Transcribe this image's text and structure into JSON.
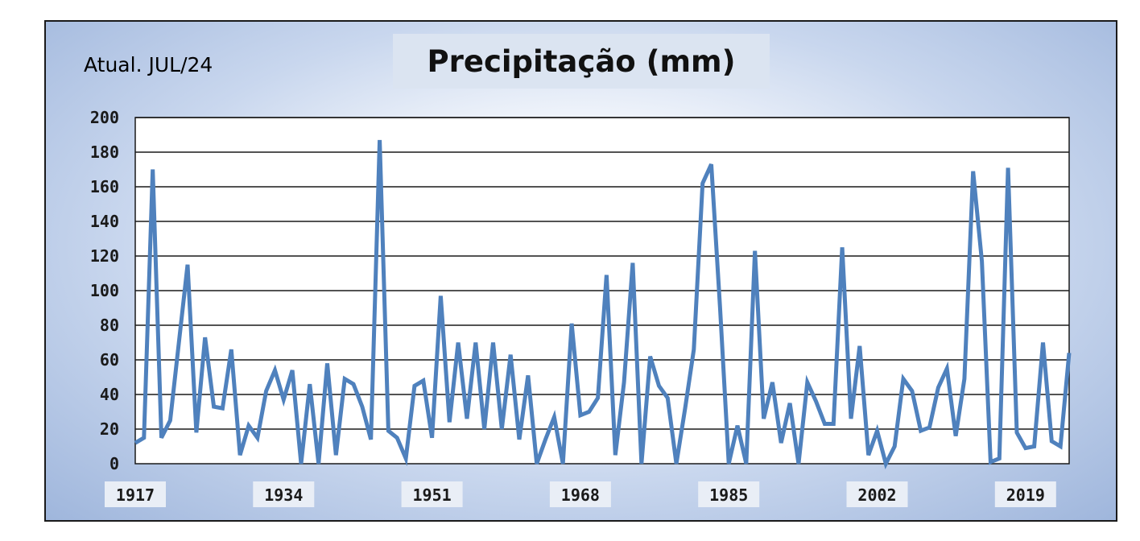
{
  "header": {
    "updated": "Atual. JUL/24"
  },
  "chart_data": {
    "type": "line",
    "title": "Precipitação (mm)",
    "xlabel": "",
    "ylabel": "",
    "ylim": [
      0,
      200
    ],
    "yticks": [
      0,
      20,
      40,
      60,
      80,
      100,
      120,
      140,
      160,
      180,
      200
    ],
    "xlim": [
      1917,
      2024
    ],
    "xticks": [
      "1917",
      "1934",
      "1951",
      "1968",
      "1985",
      "2002",
      "2019"
    ],
    "grid": true,
    "line_color": "#4f81bd",
    "series": [
      {
        "x": [
          1917,
          1918,
          1919,
          1920,
          1921,
          1922,
          1923,
          1924,
          1925,
          1926,
          1927,
          1928,
          1929,
          1930,
          1931,
          1932,
          1933,
          1934,
          1935,
          1936,
          1937,
          1938,
          1939,
          1940,
          1941,
          1942,
          1943,
          1944,
          1945,
          1946,
          1947,
          1948,
          1949,
          1950,
          1951,
          1952,
          1953,
          1954,
          1955,
          1956,
          1957,
          1958,
          1959,
          1960,
          1961,
          1962,
          1963,
          1964,
          1965,
          1966,
          1967,
          1968,
          1969,
          1970,
          1971,
          1972,
          1973,
          1974,
          1975,
          1976,
          1977,
          1978,
          1979,
          1980,
          1981,
          1982,
          1983,
          1984,
          1985,
          1986,
          1987,
          1988,
          1989,
          1990,
          1991,
          1992,
          1993,
          1994,
          1995,
          1996,
          1997,
          1998,
          1999,
          2000,
          2001,
          2002,
          2003,
          2004,
          2005,
          2006,
          2007,
          2008,
          2009,
          2010,
          2011,
          2012,
          2013,
          2014,
          2015,
          2016,
          2017,
          2018,
          2019,
          2020,
          2021,
          2022,
          2023,
          2024
        ],
        "values": [
          12,
          15,
          170,
          15,
          25,
          70,
          115,
          18,
          73,
          33,
          32,
          66,
          5,
          22,
          15,
          42,
          54,
          37,
          54,
          0,
          46,
          0,
          58,
          5,
          49,
          46,
          33,
          14,
          187,
          19,
          15,
          3,
          45,
          48,
          15,
          97,
          24,
          70,
          26,
          70,
          20,
          70,
          20,
          63,
          14,
          51,
          0,
          14,
          27,
          0,
          81,
          28,
          30,
          38,
          109,
          5,
          47,
          116,
          0,
          62,
          45,
          38,
          0,
          32,
          66,
          162,
          173,
          90,
          0,
          22,
          0,
          123,
          26,
          47,
          12,
          35,
          0,
          47,
          36,
          23,
          23,
          125,
          26,
          68,
          5,
          19,
          0,
          10,
          49,
          42,
          19,
          21,
          44,
          55,
          16,
          49,
          169,
          117,
          1,
          3,
          171,
          18,
          9,
          10,
          70,
          13,
          10,
          64
        ]
      }
    ]
  }
}
